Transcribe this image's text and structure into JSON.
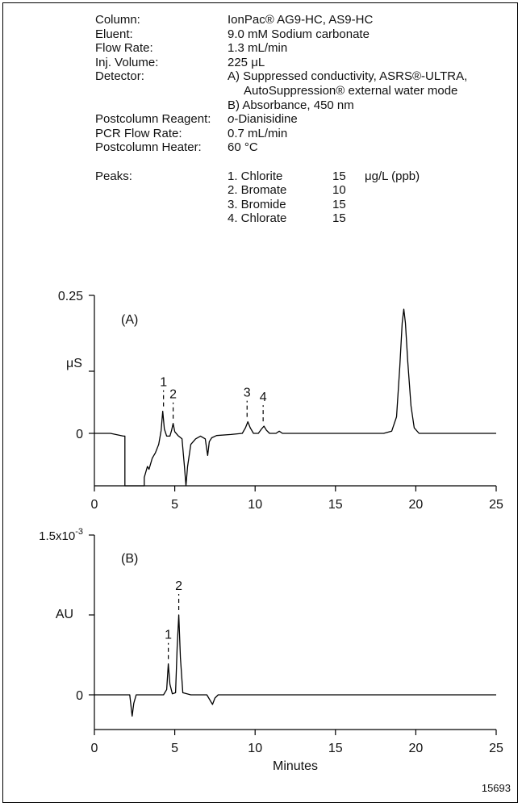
{
  "conditions": {
    "rows": [
      {
        "label": "Column:",
        "value": "IonPac® AG9-HC, AS9-HC"
      },
      {
        "label": "Eluent:",
        "value": "9.0 mM Sodium carbonate"
      },
      {
        "label": "Flow Rate:",
        "value": "1.3 mL/min"
      },
      {
        "label": "Inj. Volume:",
        "value": "225 μL"
      },
      {
        "label": "Detector:",
        "value": "A)  Suppressed conductivity, ASRS®-ULTRA,"
      },
      {
        "label": "",
        "value": "     AutoSuppression® external water mode"
      },
      {
        "label": "",
        "value": "B)  Absorbance, 450 nm"
      },
      {
        "label": "Postcolumn Reagent:",
        "value_italic": "o",
        "value": "-Dianisidine"
      },
      {
        "label": "PCR Flow Rate:",
        "value": "0.7 mL/min"
      },
      {
        "label": "Postcolumn Heater:",
        "value": "60 °C"
      }
    ],
    "peaks_label": "Peaks:",
    "peaks": [
      {
        "name": "1. Chlorite",
        "conc": "15",
        "unit": "μg/L (ppb)"
      },
      {
        "name": "2. Bromate",
        "conc": "10",
        "unit": ""
      },
      {
        "name": "3. Bromide",
        "conc": "15",
        "unit": ""
      },
      {
        "name": "4. Chlorate",
        "conc": "15",
        "unit": ""
      }
    ]
  },
  "figure_code": "15693",
  "chart_data": [
    {
      "type": "line",
      "panel_label": "(A)",
      "ylabel": "μS",
      "xlabel": "",
      "xlim": [
        0,
        25
      ],
      "xticks": [
        "0",
        "5",
        "10",
        "15",
        "20",
        "25"
      ],
      "yticks": [
        {
          "value": 0,
          "label": "0"
        },
        {
          "value": 0.25,
          "label": "0.25"
        }
      ],
      "ylim": [
        -0.13,
        0.27
      ],
      "peak_labels": [
        {
          "label": "1",
          "x": 4.3
        },
        {
          "label": "2",
          "x": 4.9
        },
        {
          "label": "3",
          "x": 9.5
        },
        {
          "label": "4",
          "x": 10.5
        }
      ],
      "trace": {
        "x": [
          0,
          1.0,
          1.8,
          1.9,
          1.9,
          3.1,
          3.1,
          3.3,
          3.4,
          3.6,
          3.8,
          4.0,
          4.15,
          4.25,
          4.35,
          4.5,
          4.7,
          4.8,
          4.9,
          5.0,
          5.2,
          5.45,
          5.6,
          5.7,
          5.8,
          6.0,
          6.3,
          6.6,
          6.9,
          7.05,
          7.15,
          7.3,
          7.6,
          8.5,
          9.2,
          9.4,
          9.55,
          9.7,
          9.9,
          10.2,
          10.4,
          10.55,
          10.7,
          10.9,
          11.3,
          11.5,
          11.7,
          12.5,
          14,
          16,
          18,
          18.5,
          18.8,
          19.0,
          19.15,
          19.25,
          19.35,
          19.5,
          19.7,
          19.9,
          20.2,
          21,
          23,
          25
        ],
        "y": [
          0,
          0,
          -0.005,
          -0.005,
          -0.13,
          -0.13,
          -0.08,
          -0.06,
          -0.065,
          -0.045,
          -0.035,
          -0.02,
          0.005,
          0.04,
          0.008,
          -0.005,
          -0.005,
          0.005,
          0.018,
          0.003,
          -0.004,
          -0.01,
          -0.06,
          -0.13,
          -0.06,
          -0.02,
          -0.01,
          -0.005,
          -0.01,
          -0.04,
          -0.015,
          -0.008,
          -0.004,
          -0.002,
          0.0,
          0.01,
          0.021,
          0.01,
          0.0,
          0.0,
          0.008,
          0.013,
          0.006,
          0.0,
          0.0,
          0.004,
          0.0,
          0.0,
          0.0,
          0.0,
          0.0,
          0.004,
          0.03,
          0.12,
          0.2,
          0.225,
          0.2,
          0.13,
          0.05,
          0.01,
          0.0,
          0.0,
          0.0,
          0.0
        ]
      }
    },
    {
      "type": "line",
      "panel_label": "(B)",
      "ylabel": "AU",
      "xlabel": "Minutes",
      "xlim": [
        0,
        25
      ],
      "xticks": [
        "0",
        "5",
        "10",
        "15",
        "20",
        "25"
      ],
      "yticks": [
        {
          "value": 0,
          "label": "0"
        },
        {
          "value": 0.0015,
          "label": "1.5x10⁻³"
        }
      ],
      "ylim": [
        -0.00045,
        0.0015
      ],
      "peak_labels": [
        {
          "label": "1",
          "x": 4.6
        },
        {
          "label": "2",
          "x": 5.25
        }
      ],
      "trace": {
        "x": [
          0,
          1.5,
          2.2,
          2.35,
          2.45,
          2.6,
          3.0,
          4.3,
          4.5,
          4.6,
          4.7,
          4.85,
          5.05,
          5.15,
          5.25,
          5.35,
          5.5,
          6.0,
          7.0,
          7.35,
          7.5,
          7.7,
          8.2,
          10,
          15,
          20,
          25
        ],
        "y": [
          0,
          0,
          0,
          -0.0002,
          -8e-05,
          0,
          0,
          0,
          5e-05,
          0.00029,
          0.0001,
          1e-05,
          2e-05,
          0.00045,
          0.00075,
          0.00035,
          2e-05,
          0,
          0,
          -9e-05,
          -3e-05,
          0,
          0,
          0,
          0,
          0,
          0
        ]
      }
    }
  ]
}
